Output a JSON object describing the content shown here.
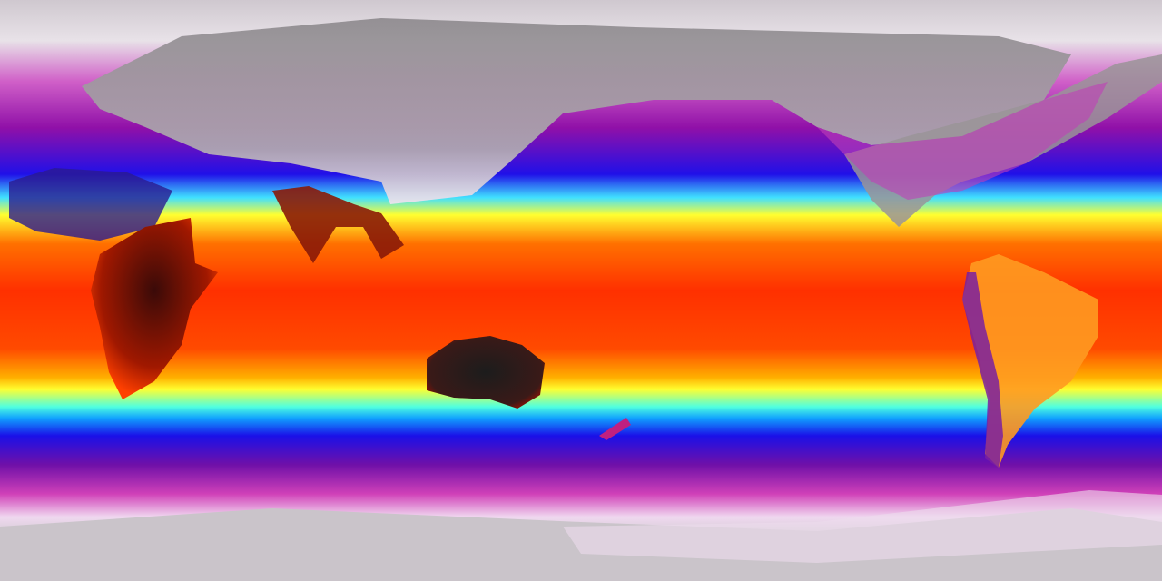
{
  "map": {
    "type": "global temperature field",
    "colormap": [
      "#c8c2c8",
      "#f0e8f0",
      "#e040c0",
      "#8a10a0",
      "#2010e0",
      "#10a0ff",
      "#60ffd0",
      "#ffff20",
      "#ffa000",
      "#ff3000",
      "#c01000",
      "#401010",
      "#202020"
    ],
    "colors": {
      "polar": "#c8c2c8",
      "cold_land": "#9a9598",
      "magenta": "#c020b0",
      "purple": "#7010a0",
      "blue": "#1a10f0",
      "cyan": "#40e8ff",
      "yellow": "#ffff30",
      "orange": "#ff9a00",
      "red": "#ff3a00",
      "hot_land": "#2a1414"
    }
  }
}
